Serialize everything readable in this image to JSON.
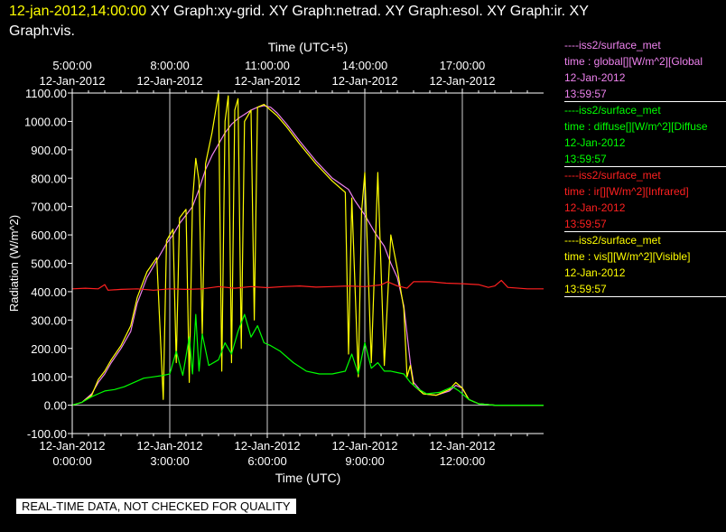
{
  "header": {
    "timestamp": "12-jan-2012,14:00:00",
    "titles_line1": "  XY Graph:xy-grid.  XY Graph:netrad.  XY Graph:esol.  XY Graph:ir.  XY",
    "titles_line2": "Graph:vis."
  },
  "disclaimer": "REAL-TIME DATA, NOT CHECKED FOR QUALITY",
  "legend": [
    {
      "source": "----iss2/surface_met",
      "variable": "time : global[][W/m^2][Global",
      "date": "12-Jan-2012",
      "time": "13:59:57",
      "color": "#ee82ee"
    },
    {
      "source": "----iss2/surface_met",
      "variable": "time : diffuse[][W/m^2][Diffuse",
      "date": "12-Jan-2012",
      "time": "13:59:57",
      "color": "#00ff00"
    },
    {
      "source": "----iss2/surface_met",
      "variable": "time : ir[][W/m^2][Infrared]",
      "date": "12-Jan-2012",
      "time": "13:59:57",
      "color": "#ff2020"
    },
    {
      "source": "----iss2/surface_met",
      "variable": "time : vis[][W/m^2][Visible]",
      "date": "12-Jan-2012",
      "time": "13:59:57",
      "color": "#ffff00"
    }
  ],
  "chart_data": {
    "type": "line",
    "xlabel": "Time (UTC)",
    "x2label": "Time (UTC+5)",
    "ylabel": "Radiation (W/m^2)",
    "xlim": [
      0,
      14.5
    ],
    "ylim": [
      -100,
      1100
    ],
    "grid": true,
    "legend_position": "right",
    "y_ticks": [
      "-100.00",
      "0.00",
      "100.00",
      "200.00",
      "300.00",
      "400.00",
      "500.00",
      "600.00",
      "700.00",
      "800.00",
      "900.00",
      "1000.00",
      "1100.00"
    ],
    "x_ticks": [
      {
        "x": 0,
        "date": "12-Jan-2012",
        "time": "0:00:00"
      },
      {
        "x": 3,
        "date": "12-Jan-2012",
        "time": "3:00:00"
      },
      {
        "x": 6,
        "date": "12-Jan-2012",
        "time": "6:00:00"
      },
      {
        "x": 9,
        "date": "12-Jan-2012",
        "time": "9:00:00"
      },
      {
        "x": 12,
        "date": "12-Jan-2012",
        "time": "12:00:00"
      }
    ],
    "x2_ticks": [
      {
        "x": 0,
        "date": "12-Jan-2012",
        "time": "5:00:00"
      },
      {
        "x": 3,
        "date": "12-Jan-2012",
        "time": "8:00:00"
      },
      {
        "x": 6,
        "date": "12-Jan-2012",
        "time": "11:00:00"
      },
      {
        "x": 9,
        "date": "12-Jan-2012",
        "time": "14:00:00"
      },
      {
        "x": 12,
        "date": "12-Jan-2012",
        "time": "17:00:00"
      }
    ],
    "series": [
      {
        "name": "global",
        "color": "#ee82ee",
        "points": [
          [
            0,
            0
          ],
          [
            0.3,
            10
          ],
          [
            0.6,
            40
          ],
          [
            0.8,
            80
          ],
          [
            1.0,
            110
          ],
          [
            1.2,
            150
          ],
          [
            1.5,
            200
          ],
          [
            1.8,
            260
          ],
          [
            2.0,
            360
          ],
          [
            2.3,
            450
          ],
          [
            2.6,
            510
          ],
          [
            2.9,
            570
          ],
          [
            3.1,
            600
          ],
          [
            3.3,
            640
          ],
          [
            3.5,
            670
          ],
          [
            3.7,
            700
          ],
          [
            3.9,
            760
          ],
          [
            4.1,
            830
          ],
          [
            4.3,
            880
          ],
          [
            4.5,
            920
          ],
          [
            4.7,
            960
          ],
          [
            4.9,
            990
          ],
          [
            5.1,
            1010
          ],
          [
            5.3,
            1025
          ],
          [
            5.5,
            1040
          ],
          [
            5.7,
            1050
          ],
          [
            5.9,
            1055
          ],
          [
            6.1,
            1050
          ],
          [
            6.3,
            1030
          ],
          [
            6.6,
            990
          ],
          [
            7.0,
            930
          ],
          [
            7.5,
            860
          ],
          [
            8.0,
            800
          ],
          [
            8.5,
            760
          ],
          [
            8.7,
            720
          ],
          [
            9.0,
            670
          ],
          [
            9.3,
            610
          ],
          [
            9.6,
            560
          ],
          [
            9.8,
            500
          ],
          [
            10.0,
            450
          ],
          [
            10.2,
            350
          ],
          [
            10.4,
            150
          ],
          [
            10.5,
            80
          ],
          [
            10.8,
            40
          ],
          [
            11.2,
            35
          ],
          [
            11.6,
            50
          ],
          [
            11.8,
            70
          ],
          [
            12.0,
            60
          ],
          [
            12.2,
            20
          ],
          [
            12.5,
            5
          ],
          [
            13.0,
            0
          ],
          [
            14.0,
            0
          ],
          [
            14.5,
            0
          ]
        ]
      },
      {
        "name": "visible",
        "color": "#ffff00",
        "points": [
          [
            0,
            0
          ],
          [
            0.3,
            10
          ],
          [
            0.6,
            35
          ],
          [
            0.8,
            90
          ],
          [
            1.0,
            120
          ],
          [
            1.2,
            160
          ],
          [
            1.5,
            210
          ],
          [
            1.8,
            280
          ],
          [
            2.0,
            380
          ],
          [
            2.3,
            470
          ],
          [
            2.6,
            520
          ],
          [
            2.8,
            20
          ],
          [
            2.9,
            580
          ],
          [
            3.1,
            620
          ],
          [
            3.2,
            150
          ],
          [
            3.3,
            660
          ],
          [
            3.5,
            690
          ],
          [
            3.6,
            80
          ],
          [
            3.7,
            720
          ],
          [
            3.8,
            870
          ],
          [
            3.9,
            790
          ],
          [
            4.0,
            250
          ],
          [
            4.1,
            850
          ],
          [
            4.3,
            960
          ],
          [
            4.5,
            1100
          ],
          [
            4.6,
            120
          ],
          [
            4.7,
            1000
          ],
          [
            4.8,
            1090
          ],
          [
            4.9,
            150
          ],
          [
            5.0,
            1040
          ],
          [
            5.1,
            1080
          ],
          [
            5.2,
            200
          ],
          [
            5.3,
            1000
          ],
          [
            5.5,
            1040
          ],
          [
            5.6,
            300
          ],
          [
            5.7,
            1050
          ],
          [
            5.9,
            1060
          ],
          [
            6.1,
            1040
          ],
          [
            6.3,
            1020
          ],
          [
            6.6,
            980
          ],
          [
            7.0,
            920
          ],
          [
            7.5,
            850
          ],
          [
            8.0,
            790
          ],
          [
            8.4,
            750
          ],
          [
            8.5,
            180
          ],
          [
            8.6,
            730
          ],
          [
            8.8,
            100
          ],
          [
            8.9,
            680
          ],
          [
            9.0,
            820
          ],
          [
            9.2,
            150
          ],
          [
            9.4,
            820
          ],
          [
            9.6,
            140
          ],
          [
            9.8,
            600
          ],
          [
            10.0,
            480
          ],
          [
            10.2,
            340
          ],
          [
            10.3,
            100
          ],
          [
            10.4,
            140
          ],
          [
            10.5,
            70
          ],
          [
            10.8,
            40
          ],
          [
            11.2,
            35
          ],
          [
            11.6,
            55
          ],
          [
            11.8,
            80
          ],
          [
            12.0,
            60
          ],
          [
            12.2,
            20
          ],
          [
            12.5,
            5
          ],
          [
            13.0,
            0
          ],
          [
            14.0,
            0
          ],
          [
            14.5,
            0
          ]
        ]
      },
      {
        "name": "infrared",
        "color": "#ff2020",
        "points": [
          [
            0,
            410
          ],
          [
            0.4,
            412
          ],
          [
            0.8,
            410
          ],
          [
            1.0,
            425
          ],
          [
            1.1,
            405
          ],
          [
            1.5,
            408
          ],
          [
            2.0,
            410
          ],
          [
            2.5,
            405
          ],
          [
            3.0,
            410
          ],
          [
            3.5,
            408
          ],
          [
            4.0,
            410
          ],
          [
            4.5,
            418
          ],
          [
            5.0,
            412
          ],
          [
            5.5,
            418
          ],
          [
            6.0,
            414
          ],
          [
            6.5,
            418
          ],
          [
            7.0,
            420
          ],
          [
            7.5,
            416
          ],
          [
            8.0,
            418
          ],
          [
            8.5,
            420
          ],
          [
            9.0,
            418
          ],
          [
            9.5,
            424
          ],
          [
            9.7,
            435
          ],
          [
            10.0,
            420
          ],
          [
            10.3,
            412
          ],
          [
            10.5,
            435
          ],
          [
            11.0,
            435
          ],
          [
            11.5,
            430
          ],
          [
            12.0,
            428
          ],
          [
            12.5,
            425
          ],
          [
            12.8,
            415
          ],
          [
            13.0,
            420
          ],
          [
            13.2,
            440
          ],
          [
            13.4,
            415
          ],
          [
            14.0,
            410
          ],
          [
            14.5,
            410
          ]
        ]
      },
      {
        "name": "diffuse",
        "color": "#00ff00",
        "points": [
          [
            0,
            0
          ],
          [
            0.3,
            10
          ],
          [
            0.6,
            30
          ],
          [
            0.8,
            40
          ],
          [
            1.0,
            50
          ],
          [
            1.3,
            55
          ],
          [
            1.6,
            65
          ],
          [
            1.9,
            80
          ],
          [
            2.2,
            95
          ],
          [
            2.5,
            100
          ],
          [
            2.8,
            105
          ],
          [
            3.0,
            110
          ],
          [
            3.2,
            190
          ],
          [
            3.4,
            105
          ],
          [
            3.6,
            240
          ],
          [
            3.7,
            110
          ],
          [
            3.8,
            320
          ],
          [
            3.9,
            120
          ],
          [
            4.0,
            250
          ],
          [
            4.2,
            140
          ],
          [
            4.5,
            160
          ],
          [
            4.7,
            220
          ],
          [
            4.9,
            180
          ],
          [
            5.1,
            260
          ],
          [
            5.3,
            320
          ],
          [
            5.5,
            240
          ],
          [
            5.7,
            280
          ],
          [
            5.9,
            220
          ],
          [
            6.1,
            210
          ],
          [
            6.4,
            190
          ],
          [
            6.8,
            150
          ],
          [
            7.2,
            120
          ],
          [
            7.6,
            110
          ],
          [
            8.0,
            110
          ],
          [
            8.4,
            120
          ],
          [
            8.6,
            180
          ],
          [
            8.8,
            110
          ],
          [
            9.0,
            220
          ],
          [
            9.2,
            130
          ],
          [
            9.4,
            150
          ],
          [
            9.6,
            120
          ],
          [
            9.8,
            120
          ],
          [
            10.0,
            115
          ],
          [
            10.2,
            110
          ],
          [
            10.4,
            80
          ],
          [
            10.6,
            60
          ],
          [
            10.9,
            40
          ],
          [
            11.3,
            45
          ],
          [
            11.7,
            65
          ],
          [
            11.9,
            50
          ],
          [
            12.2,
            20
          ],
          [
            12.5,
            5
          ],
          [
            13.0,
            0
          ],
          [
            14.0,
            0
          ],
          [
            14.5,
            0
          ]
        ]
      }
    ]
  }
}
